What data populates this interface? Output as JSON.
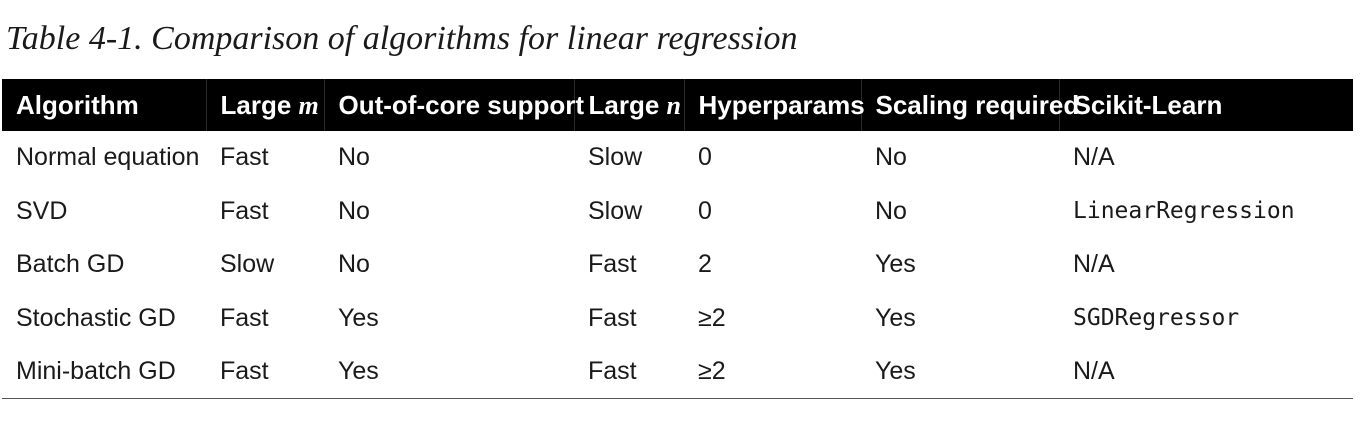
{
  "caption": "Table 4-1. Comparison of algorithms for linear regression",
  "table": {
    "headers": [
      {
        "text": "Algorithm",
        "emph": ""
      },
      {
        "text": "Large ",
        "emph": "m"
      },
      {
        "text": "Out-of-core support",
        "emph": ""
      },
      {
        "text": "Large ",
        "emph": "n"
      },
      {
        "text": "Hyperparams",
        "emph": ""
      },
      {
        "text": "Scaling required",
        "emph": ""
      },
      {
        "text": "Scikit-Learn",
        "emph": ""
      }
    ],
    "rows": [
      [
        "Normal equation",
        "Fast",
        "No",
        "Slow",
        "0",
        "No",
        "N/A"
      ],
      [
        "SVD",
        "Fast",
        "No",
        "Slow",
        "0",
        "No",
        "LinearRegression"
      ],
      [
        "Batch GD",
        "Slow",
        "No",
        "Fast",
        "2",
        "Yes",
        "N/A"
      ],
      [
        "Stochastic GD",
        "Fast",
        "Yes",
        "Fast",
        "≥2",
        "Yes",
        "SGDRegressor"
      ],
      [
        "Mini-batch GD",
        "Fast",
        "Yes",
        "Fast",
        "≥2",
        "Yes",
        "N/A"
      ]
    ],
    "code_values": [
      "LinearRegression",
      "SGDRegressor"
    ]
  }
}
